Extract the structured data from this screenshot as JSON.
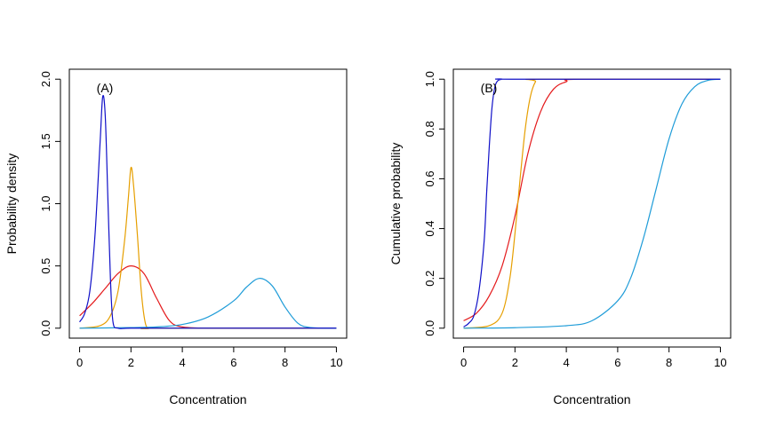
{
  "chart_data": [
    {
      "type": "line",
      "panel_label": "(A)",
      "xlabel": "Concentration",
      "ylabel": "Probability density",
      "xlim": [
        0,
        10
      ],
      "ylim": [
        0,
        2
      ],
      "xticks": [
        "0",
        "2",
        "4",
        "6",
        "8",
        "10"
      ],
      "yticks": [
        "0.0",
        "0.5",
        "1.0",
        "1.5",
        "2.0"
      ],
      "grid": false,
      "legend": "none",
      "series": [
        {
          "color": "#E41A1C",
          "x": [
            0,
            0.5,
            1,
            1.5,
            2,
            2.5,
            3,
            3.5,
            4,
            5,
            6,
            8,
            10
          ],
          "y": [
            0.1,
            0.2,
            0.32,
            0.44,
            0.5,
            0.44,
            0.24,
            0.06,
            0.01,
            0,
            0,
            0,
            0
          ]
        },
        {
          "color": "#E69F00",
          "x": [
            0,
            0.8,
            1.2,
            1.5,
            1.75,
            1.9,
            2.0,
            2.1,
            2.25,
            2.4,
            2.55,
            2.7,
            3,
            10
          ],
          "y": [
            0,
            0.02,
            0.1,
            0.3,
            0.7,
            1.05,
            1.29,
            1.15,
            0.75,
            0.3,
            0.05,
            0,
            0,
            0
          ]
        },
        {
          "color": "#1F9CD8",
          "x": [
            0,
            1,
            2,
            3,
            4,
            5,
            6,
            6.5,
            7,
            7.5,
            8,
            8.5,
            9,
            10
          ],
          "y": [
            0,
            0.002,
            0.005,
            0.01,
            0.03,
            0.09,
            0.22,
            0.33,
            0.4,
            0.34,
            0.17,
            0.04,
            0.005,
            0
          ]
        },
        {
          "color": "#1010C8",
          "x": [
            0,
            0.2,
            0.4,
            0.6,
            0.8,
            0.9,
            1.0,
            1.1,
            1.2,
            1.3,
            1.5,
            2,
            4,
            6,
            8,
            10
          ],
          "y": [
            0.05,
            0.12,
            0.3,
            0.75,
            1.5,
            1.86,
            1.7,
            1.05,
            0.4,
            0.05,
            0,
            0,
            0,
            0,
            0,
            0
          ]
        }
      ]
    },
    {
      "type": "line",
      "panel_label": "(B)",
      "xlabel": "Concentration",
      "ylabel": "Cumulative probability",
      "xlim": [
        0,
        10
      ],
      "ylim": [
        0,
        1
      ],
      "xticks": [
        "0",
        "2",
        "4",
        "6",
        "8",
        "10"
      ],
      "yticks": [
        "0.0",
        "0.2",
        "0.4",
        "0.6",
        "0.8",
        "1.0"
      ],
      "grid": false,
      "legend": "none",
      "series": [
        {
          "color": "#E41A1C",
          "x": [
            0,
            0.5,
            1,
            1.5,
            2,
            2.5,
            3,
            3.5,
            4,
            4.5,
            10
          ],
          "y": [
            0.03,
            0.06,
            0.13,
            0.25,
            0.45,
            0.7,
            0.87,
            0.96,
            0.99,
            1,
            1
          ]
        },
        {
          "color": "#E69F00",
          "x": [
            0,
            1,
            1.5,
            1.8,
            2,
            2.2,
            2.4,
            2.6,
            2.8,
            3,
            10
          ],
          "y": [
            0,
            0.01,
            0.06,
            0.2,
            0.38,
            0.6,
            0.8,
            0.93,
            0.99,
            1,
            1
          ]
        },
        {
          "color": "#1F9CD8",
          "x": [
            0,
            2,
            4,
            5,
            6,
            6.5,
            7,
            7.5,
            8,
            8.5,
            9,
            9.5,
            10
          ],
          "y": [
            0,
            0.002,
            0.01,
            0.03,
            0.11,
            0.2,
            0.36,
            0.56,
            0.76,
            0.9,
            0.97,
            0.995,
            1
          ]
        },
        {
          "color": "#1010C8",
          "x": [
            0,
            0.2,
            0.4,
            0.6,
            0.8,
            0.9,
            1.0,
            1.1,
            1.2,
            1.3,
            1.5,
            2,
            10
          ],
          "y": [
            0.005,
            0.02,
            0.05,
            0.15,
            0.35,
            0.55,
            0.73,
            0.88,
            0.96,
            0.99,
            1,
            1,
            1
          ]
        }
      ]
    }
  ]
}
